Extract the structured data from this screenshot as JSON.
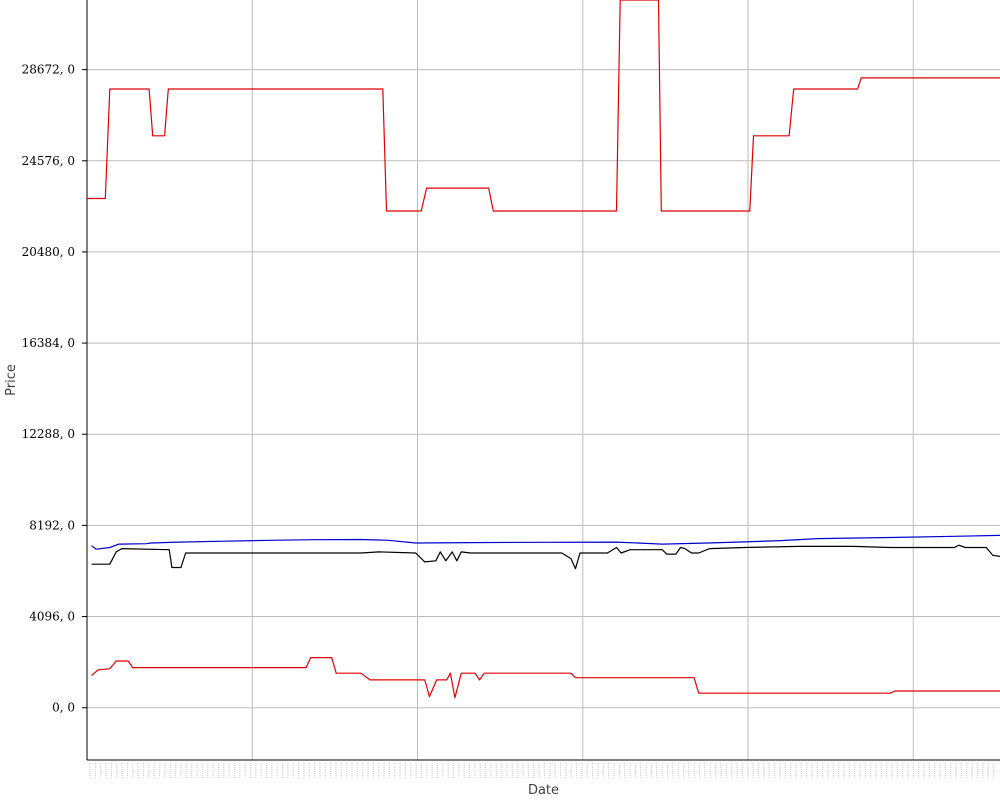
{
  "chart_data": {
    "type": "line",
    "title": "",
    "xlabel": "Date",
    "ylabel": "Price",
    "xlim": [
      0,
      100
    ],
    "ylim": [
      -2350,
      31800
    ],
    "yticks": [
      0,
      4096,
      8192,
      12288,
      16384,
      20480,
      24576,
      28672
    ],
    "ytick_labels": [
      "0, 0",
      "4096, 0",
      "8192, 0",
      "12288, 0",
      "16384, 0",
      "20480, 0",
      "24576, 0",
      "28672, 0"
    ],
    "xgrid": [
      0,
      18.1,
      36.2,
      54.3,
      72.4,
      90.5
    ],
    "grid": true,
    "legend": "none",
    "series": [
      {
        "color": "#dd0000",
        "points": [
          [
            0,
            22880
          ],
          [
            2,
            22880
          ],
          [
            2.5,
            27800
          ],
          [
            6.8,
            27800
          ],
          [
            7.2,
            25700
          ],
          [
            8.5,
            25700
          ],
          [
            8.9,
            27800
          ],
          [
            32.4,
            27800
          ],
          [
            32.8,
            22320
          ],
          [
            36.6,
            22320
          ],
          [
            37.2,
            23350
          ],
          [
            44,
            23350
          ],
          [
            44.5,
            22320
          ],
          [
            58,
            22320
          ],
          [
            58.4,
            31800
          ],
          [
            62.6,
            31800
          ],
          [
            62.9,
            22320
          ],
          [
            72.6,
            22320
          ],
          [
            73,
            25700
          ],
          [
            76.9,
            25700
          ],
          [
            77.4,
            27800
          ],
          [
            84.4,
            27800
          ],
          [
            84.8,
            28300
          ],
          [
            100,
            28300
          ]
        ]
      },
      {
        "color": "#0000cc",
        "points": [
          [
            0.5,
            7280
          ],
          [
            1,
            7120
          ],
          [
            2.5,
            7200
          ],
          [
            3.5,
            7350
          ],
          [
            6.5,
            7370
          ],
          [
            7,
            7400
          ],
          [
            10,
            7440
          ],
          [
            15,
            7480
          ],
          [
            20,
            7520
          ],
          [
            25,
            7550
          ],
          [
            30,
            7560
          ],
          [
            33,
            7520
          ],
          [
            36,
            7400
          ],
          [
            42,
            7420
          ],
          [
            50,
            7430
          ],
          [
            58,
            7440
          ],
          [
            63,
            7350
          ],
          [
            68,
            7400
          ],
          [
            72,
            7450
          ],
          [
            76,
            7510
          ],
          [
            80,
            7600
          ],
          [
            88,
            7650
          ],
          [
            95,
            7700
          ],
          [
            100,
            7740
          ]
        ]
      },
      {
        "color": "#000000",
        "points": [
          [
            0.5,
            6450
          ],
          [
            2.5,
            6450
          ],
          [
            3.2,
            7000
          ],
          [
            3.8,
            7150
          ],
          [
            9,
            7100
          ],
          [
            9.3,
            6300
          ],
          [
            10.3,
            6300
          ],
          [
            10.8,
            6950
          ],
          [
            25,
            6950
          ],
          [
            30,
            6950
          ],
          [
            32,
            7000
          ],
          [
            36,
            6950
          ],
          [
            37,
            6550
          ],
          [
            38.2,
            6600
          ],
          [
            38.7,
            7000
          ],
          [
            39.3,
            6600
          ],
          [
            40,
            7000
          ],
          [
            40.5,
            6600
          ],
          [
            41,
            7000
          ],
          [
            42,
            6950
          ],
          [
            52,
            6950
          ],
          [
            53,
            6700
          ],
          [
            53.5,
            6250
          ],
          [
            54,
            6950
          ],
          [
            57,
            6950
          ],
          [
            58,
            7200
          ],
          [
            58.5,
            6950
          ],
          [
            59.5,
            7100
          ],
          [
            63,
            7100
          ],
          [
            63.5,
            6900
          ],
          [
            64.5,
            6900
          ],
          [
            65,
            7200
          ],
          [
            65.5,
            7150
          ],
          [
            66.2,
            6950
          ],
          [
            67,
            6950
          ],
          [
            68.2,
            7150
          ],
          [
            72,
            7200
          ],
          [
            78,
            7250
          ],
          [
            84,
            7250
          ],
          [
            88,
            7200
          ],
          [
            92,
            7200
          ],
          [
            95,
            7200
          ],
          [
            95.5,
            7300
          ],
          [
            96.2,
            7200
          ],
          [
            98.5,
            7200
          ],
          [
            99.2,
            6850
          ],
          [
            100,
            6800
          ]
        ]
      },
      {
        "color": "#dd0000",
        "points": [
          [
            0.5,
            1450
          ],
          [
            1.2,
            1700
          ],
          [
            2.5,
            1750
          ],
          [
            3.2,
            2100
          ],
          [
            4.5,
            2100
          ],
          [
            5,
            1800
          ],
          [
            24,
            1800
          ],
          [
            24.5,
            2250
          ],
          [
            26.8,
            2250
          ],
          [
            27.3,
            1550
          ],
          [
            30,
            1550
          ],
          [
            31,
            1250
          ],
          [
            37,
            1250
          ],
          [
            37.5,
            500
          ],
          [
            38.3,
            1250
          ],
          [
            39.4,
            1250
          ],
          [
            39.8,
            1550
          ],
          [
            40.3,
            450
          ],
          [
            41,
            1550
          ],
          [
            42.5,
            1550
          ],
          [
            43,
            1250
          ],
          [
            43.5,
            1550
          ],
          [
            53,
            1550
          ],
          [
            53.5,
            1350
          ],
          [
            62,
            1350
          ],
          [
            66.5,
            1350
          ],
          [
            67,
            650
          ],
          [
            70,
            650
          ],
          [
            88,
            650
          ],
          [
            88.5,
            750
          ],
          [
            100,
            750
          ]
        ]
      }
    ]
  }
}
